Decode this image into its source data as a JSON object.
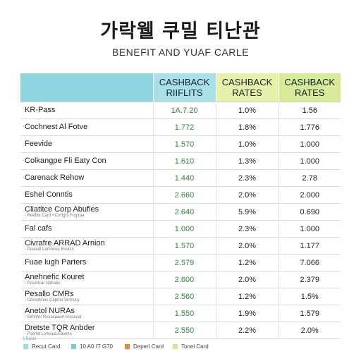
{
  "title": "가락웰 쿠밀 티난관",
  "subtitle": "BENEFIT AND YUAF CARLE",
  "table": {
    "headers": [
      "",
      "CASHBACK\nRIIFLITS",
      "CASHBACK\nRATES",
      "CASHBACK\nRATES"
    ],
    "rows": [
      {
        "name": "KR-Pass",
        "sub": "",
        "v1": "1A.7.20",
        "v2": "1.0%",
        "v3": "1.56"
      },
      {
        "name": "Cochnest Al Fotve",
        "sub": "",
        "v1": "1.772",
        "v2": "1.8%",
        "v3": "1.776"
      },
      {
        "name": "Feevide",
        "sub": "",
        "v1": "1.570",
        "v2": "1.0%",
        "v3": "1.000"
      },
      {
        "name": "Colkangpe Fli Eaty Con",
        "sub": "",
        "v1": "1.610",
        "v2": "1.3%",
        "v3": "1.000"
      },
      {
        "name": "Carenack Rehow",
        "sub": "",
        "v1": "1.440",
        "v2": "2.3%",
        "v3": "2.78"
      },
      {
        "name": "Eshel Conntis",
        "sub": "",
        "v1": "2.660",
        "v2": "2.0%",
        "v3": "2.000"
      },
      {
        "name": "Cliatitce Corp Abufies",
        "sub": "- Reeflot Card • Cortgrs Foglrpa",
        "v1": "2.640",
        "v2": "5.9%",
        "v3": "0.690"
      },
      {
        "name": "Fal cafs",
        "sub": "",
        "v1": "1.000",
        "v2": "2.3%",
        "v3": "1.000"
      },
      {
        "name": "Civrafre ARRAD Arnion",
        "sub": "- Posiedl Lemocuu Erelcts",
        "v1": "1.570",
        "v2": "2.0%",
        "v3": "1.177"
      },
      {
        "name": "Fuae lugh Parters",
        "sub": "",
        "v1": "2.579",
        "v2": "1.2%",
        "v3": "7.066"
      },
      {
        "name": "Anehnefic Kouret",
        "sub": "- Posellcar Nafuuls",
        "v1": "2.600",
        "v2": "2.0%",
        "v3": "2.379"
      },
      {
        "name": "Pesallo CMRs",
        "sub": "- Conselinos Cepnet Sronscy",
        "v1": "2.560",
        "v2": "1.2%",
        "v3": "1.5%"
      },
      {
        "name": "Anetol NURAs",
        "sub": "- Sirtinfor Rsvacuaon Arsoscal",
        "v1": "1.550",
        "v2": "1.9%",
        "v3": "1.579"
      },
      {
        "name": "Dretste TQR Anbder",
        "sub": "- Psehld Lorkuua Eaiects",
        "v1": "2.550",
        "v2": "2.2%",
        "v3": "2.0%"
      }
    ]
  },
  "legend": {
    "title": "Lkuus",
    "items": [
      {
        "label": "Recut Card",
        "color": "#9fdde6"
      },
      {
        "label": "10 A0 IT G70",
        "color": "#7ac8da"
      },
      {
        "label": "Deperl Card",
        "color": "#e8873a"
      },
      {
        "label": "Tonel Card",
        "color": "#d6e88a"
      }
    ]
  }
}
